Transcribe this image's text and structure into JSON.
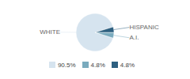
{
  "chart_data": {
    "type": "pie",
    "categories": [
      "WHITE",
      "A.I.",
      "HISPANIC"
    ],
    "values": [
      90.5,
      4.8,
      4.8
    ],
    "value_labels": [
      "90.5%",
      "4.8%",
      "4.8%"
    ],
    "colors": [
      "#d6e4ef",
      "#7aabbe",
      "#2e6080"
    ],
    "legend": "bottom"
  }
}
